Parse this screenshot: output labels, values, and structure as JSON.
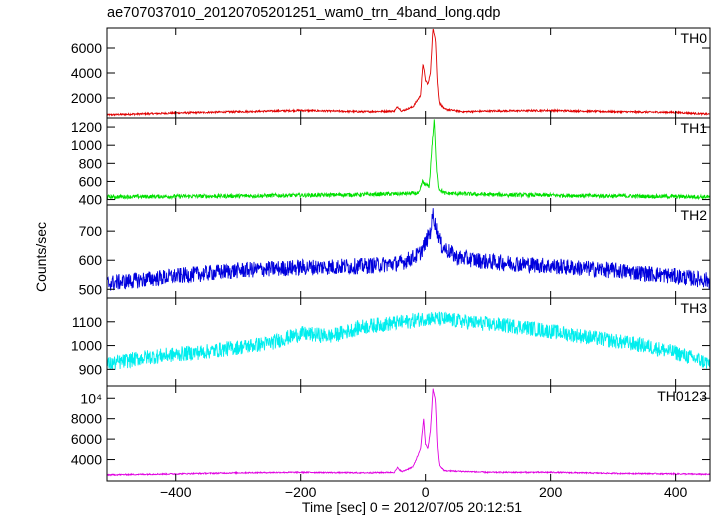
{
  "chart_data": {
    "type": "line",
    "title": "ae707037010_20120705201251_wam0_trn_4band_long.qdp",
    "xlabel": "Time [sec] 0 = 2012/07/05 20:12:51",
    "ylabel": "Counts/sec",
    "xlim": [
      -510,
      455
    ],
    "xticks": [
      -400,
      -200,
      0,
      200,
      400
    ],
    "xtick_labels": [
      "−400",
      "−200",
      "0",
      "200",
      "400"
    ],
    "grid": false,
    "panels": [
      {
        "name": "TH0",
        "color": "#e00000",
        "ylim": [
          400,
          7600
        ],
        "yticks": [
          2000,
          4000,
          6000
        ],
        "ytick_labels": [
          "2000",
          "4000",
          "6000"
        ],
        "noise": 70,
        "points": [
          [
            -510,
            650
          ],
          [
            -400,
            800
          ],
          [
            -300,
            900
          ],
          [
            -200,
            1000
          ],
          [
            -100,
            900
          ],
          [
            -50,
            950
          ],
          [
            -45,
            1300
          ],
          [
            -38,
            950
          ],
          [
            -20,
            1300
          ],
          [
            -8,
            2200
          ],
          [
            -4,
            4800
          ],
          [
            0,
            3400
          ],
          [
            4,
            3100
          ],
          [
            8,
            4100
          ],
          [
            12,
            7600
          ],
          [
            16,
            6700
          ],
          [
            19,
            3200
          ],
          [
            22,
            1600
          ],
          [
            30,
            1100
          ],
          [
            60,
            900
          ],
          [
            100,
            950
          ],
          [
            200,
            1000
          ],
          [
            300,
            900
          ],
          [
            400,
            850
          ],
          [
            455,
            700
          ]
        ]
      },
      {
        "name": "TH1",
        "color": "#00e000",
        "ylim": [
          340,
          1300
        ],
        "yticks": [
          400,
          600,
          800,
          1000,
          1200
        ],
        "ytick_labels": [
          "400",
          "600",
          "800",
          "1000",
          "1200"
        ],
        "noise": 22,
        "points": [
          [
            -510,
            430
          ],
          [
            -300,
            440
          ],
          [
            -100,
            455
          ],
          [
            -10,
            470
          ],
          [
            -5,
            600
          ],
          [
            0,
            560
          ],
          [
            6,
            550
          ],
          [
            10,
            960
          ],
          [
            14,
            1280
          ],
          [
            17,
            800
          ],
          [
            21,
            520
          ],
          [
            30,
            470
          ],
          [
            100,
            455
          ],
          [
            300,
            440
          ],
          [
            455,
            430
          ]
        ]
      },
      {
        "name": "TH2",
        "color": "#0000dd",
        "ylim": [
          470,
          790
        ],
        "yticks": [
          500,
          600,
          700
        ],
        "ytick_labels": [
          "500",
          "600",
          "700"
        ],
        "noise": 28,
        "points": [
          [
            -510,
            520
          ],
          [
            -400,
            545
          ],
          [
            -300,
            565
          ],
          [
            -200,
            575
          ],
          [
            -100,
            580
          ],
          [
            -40,
            590
          ],
          [
            -10,
            620
          ],
          [
            0,
            660
          ],
          [
            8,
            700
          ],
          [
            12,
            760
          ],
          [
            16,
            720
          ],
          [
            25,
            650
          ],
          [
            50,
            610
          ],
          [
            100,
            595
          ],
          [
            200,
            580
          ],
          [
            300,
            565
          ],
          [
            400,
            545
          ],
          [
            455,
            530
          ]
        ]
      },
      {
        "name": "TH3",
        "color": "#00eeee",
        "ylim": [
          830,
          1200
        ],
        "yticks": [
          900,
          1000,
          1100
        ],
        "ytick_labels": [
          "900",
          "1000",
          "1100"
        ],
        "noise": 32,
        "points": [
          [
            -510,
            920
          ],
          [
            -450,
            950
          ],
          [
            -350,
            975
          ],
          [
            -250,
            1010
          ],
          [
            -200,
            1050
          ],
          [
            -150,
            1040
          ],
          [
            -100,
            1080
          ],
          [
            -30,
            1100
          ],
          [
            0,
            1115
          ],
          [
            30,
            1110
          ],
          [
            100,
            1090
          ],
          [
            150,
            1080
          ],
          [
            200,
            1060
          ],
          [
            250,
            1040
          ],
          [
            300,
            1020
          ],
          [
            350,
            1000
          ],
          [
            400,
            970
          ],
          [
            455,
            925
          ]
        ]
      },
      {
        "name": "TH0123",
        "color": "#e000e0",
        "ylim": [
          1900,
          11200
        ],
        "yticks": [
          4000,
          6000,
          8000,
          10000
        ],
        "ytick_labels": [
          "4000",
          "6000",
          "8000",
          "10⁴"
        ],
        "noise": 60,
        "points": [
          [
            -510,
            2500
          ],
          [
            -400,
            2600
          ],
          [
            -300,
            2700
          ],
          [
            -200,
            2750
          ],
          [
            -100,
            2700
          ],
          [
            -50,
            2750
          ],
          [
            -45,
            3200
          ],
          [
            -38,
            2800
          ],
          [
            -20,
            3300
          ],
          [
            -8,
            5000
          ],
          [
            -3,
            8000
          ],
          [
            0,
            5500
          ],
          [
            4,
            5100
          ],
          [
            8,
            6900
          ],
          [
            12,
            10900
          ],
          [
            16,
            9800
          ],
          [
            19,
            5200
          ],
          [
            22,
            3400
          ],
          [
            30,
            2900
          ],
          [
            100,
            2750
          ],
          [
            200,
            2750
          ],
          [
            300,
            2650
          ],
          [
            400,
            2600
          ],
          [
            455,
            2550
          ]
        ]
      }
    ]
  }
}
